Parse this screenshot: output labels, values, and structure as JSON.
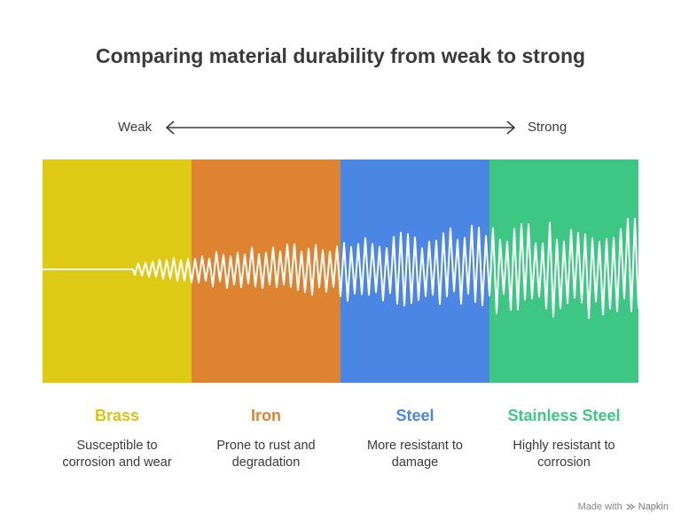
{
  "title": "Comparing material durability from weak to strong",
  "scale": {
    "left": "Weak",
    "right": "Strong"
  },
  "materials": [
    {
      "name": "Brass",
      "desc_line1": "Susceptible to",
      "desc_line2": "corrosion and wear",
      "color": "#DEC914",
      "text_color": "#D9C313"
    },
    {
      "name": "Iron",
      "desc_line1": "Prone to rust and",
      "desc_line2": "degradation",
      "color": "#DE8430",
      "text_color": "#DE8430"
    },
    {
      "name": "Steel",
      "desc_line1": "More resistant to",
      "desc_line2": "damage",
      "color": "#4C86E4",
      "text_color": "#4C86E4"
    },
    {
      "name": "Stainless Steel",
      "desc_line1": "Highly resistant to",
      "desc_line2": "corrosion",
      "color": "#3EC784",
      "text_color": "#3EC784"
    }
  ],
  "footer": {
    "prefix": "Made with",
    "brand": "Napkin"
  }
}
